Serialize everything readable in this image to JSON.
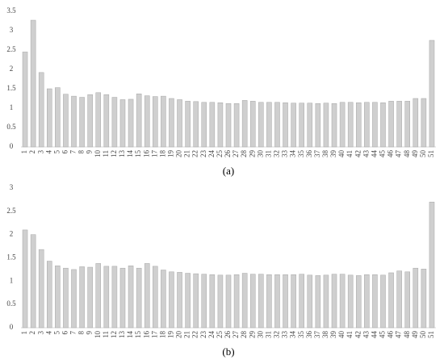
{
  "chart_data": [
    {
      "type": "bar",
      "caption": "(a)",
      "categories": [
        "1",
        "2",
        "3",
        "4",
        "5",
        "6",
        "7",
        "8",
        "9",
        "10",
        "11",
        "12",
        "13",
        "14",
        "15",
        "16",
        "17",
        "18",
        "19",
        "20",
        "21",
        "22",
        "23",
        "24",
        "25",
        "26",
        "27",
        "28",
        "29",
        "30",
        "31",
        "32",
        "33",
        "34",
        "35",
        "36",
        "37",
        "38",
        "39",
        "40",
        "41",
        "42",
        "43",
        "44",
        "45",
        "46",
        "47",
        "48",
        "49",
        "50",
        "51"
      ],
      "values": [
        2.45,
        3.27,
        1.92,
        1.5,
        1.53,
        1.36,
        1.31,
        1.28,
        1.35,
        1.4,
        1.35,
        1.28,
        1.22,
        1.23,
        1.37,
        1.32,
        1.3,
        1.31,
        1.25,
        1.22,
        1.18,
        1.17,
        1.15,
        1.15,
        1.14,
        1.12,
        1.12,
        1.2,
        1.18,
        1.15,
        1.15,
        1.15,
        1.14,
        1.13,
        1.13,
        1.13,
        1.12,
        1.13,
        1.12,
        1.15,
        1.15,
        1.14,
        1.15,
        1.15,
        1.14,
        1.18,
        1.18,
        1.18,
        1.25,
        1.25,
        2.75
      ],
      "color": "#cfcfcf",
      "ylim": [
        0,
        3.5
      ],
      "yticks": [
        0,
        0.5,
        1,
        1.5,
        2,
        2.5,
        3,
        3.5
      ]
    },
    {
      "type": "bar",
      "caption": "(b)",
      "categories": [
        "1",
        "2",
        "3",
        "4",
        "5",
        "6",
        "7",
        "8",
        "9",
        "10",
        "11",
        "12",
        "13",
        "14",
        "15",
        "16",
        "17",
        "18",
        "19",
        "20",
        "21",
        "22",
        "23",
        "24",
        "25",
        "26",
        "27",
        "28",
        "29",
        "30",
        "31",
        "32",
        "33",
        "34",
        "35",
        "36",
        "37",
        "38",
        "39",
        "40",
        "41",
        "42",
        "43",
        "44",
        "45",
        "46",
        "47",
        "48",
        "49",
        "50",
        "51"
      ],
      "values": [
        2.1,
        2.0,
        1.68,
        1.43,
        1.33,
        1.28,
        1.25,
        1.31,
        1.3,
        1.38,
        1.32,
        1.32,
        1.28,
        1.33,
        1.28,
        1.38,
        1.32,
        1.24,
        1.2,
        1.19,
        1.17,
        1.16,
        1.15,
        1.14,
        1.13,
        1.13,
        1.14,
        1.17,
        1.15,
        1.15,
        1.14,
        1.14,
        1.14,
        1.14,
        1.15,
        1.13,
        1.12,
        1.13,
        1.15,
        1.15,
        1.13,
        1.12,
        1.14,
        1.14,
        1.13,
        1.18,
        1.22,
        1.2,
        1.28,
        1.26,
        2.7
      ],
      "color": "#cfcfcf",
      "ylim": [
        0,
        3
      ],
      "yticks": [
        0,
        0.5,
        1,
        1.5,
        2,
        2.5,
        3
      ]
    }
  ]
}
